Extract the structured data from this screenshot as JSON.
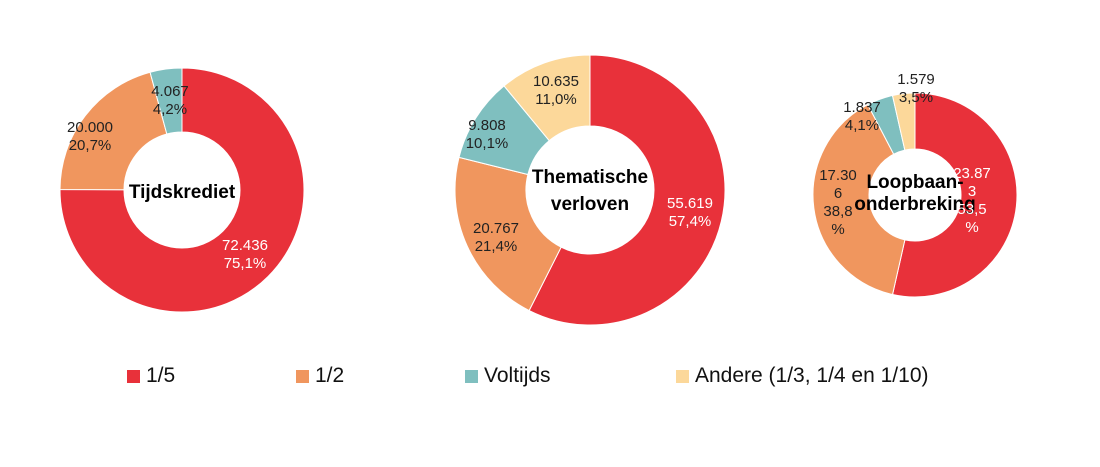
{
  "colors": {
    "one_fifth": "#E8313A",
    "half": "#F0965E",
    "fulltime": "#7FBFBF",
    "other": "#FCD89A"
  },
  "legend": [
    {
      "label": "1/5",
      "color": "#E8313A"
    },
    {
      "label": "1/2",
      "color": "#F0965E"
    },
    {
      "label": "Voltijds",
      "color": "#7FBFBF"
    },
    {
      "label": "Andere (1/3, 1/4 en 1/10)",
      "color": "#FCD89A"
    }
  ],
  "chart_data": [
    {
      "type": "pie",
      "title": "Tijdskrediet",
      "categories": [
        "1/5",
        "1/2",
        "Voltijds",
        "Andere (1/3, 1/4 en 1/10)"
      ],
      "values": [
        72436,
        20000,
        4067,
        0
      ],
      "value_labels": [
        "72.436",
        "20.000",
        "4.067",
        ""
      ],
      "percent_labels": [
        "75,1%",
        "20,7%",
        "4,2%",
        ""
      ]
    },
    {
      "type": "pie",
      "title": "Thematische verloven",
      "categories": [
        "1/5",
        "1/2",
        "Voltijds",
        "Andere (1/3, 1/4 en 1/10)"
      ],
      "values": [
        55619,
        20767,
        9808,
        10635
      ],
      "value_labels": [
        "55.619",
        "20.767",
        "9.808",
        "10.635"
      ],
      "percent_labels": [
        "57,4%",
        "21,4%",
        "10,1%",
        "11,0%"
      ]
    },
    {
      "type": "pie",
      "title": "Loopbaan-onderbreking",
      "categories": [
        "1/5",
        "1/2",
        "Voltijds",
        "Andere (1/3, 1/4 en 1/10)"
      ],
      "values": [
        23873,
        17306,
        1837,
        1579
      ],
      "value_labels": [
        "23.873",
        "17.306",
        "1.837",
        "1.579"
      ],
      "percent_labels": [
        "53,5%",
        "38,8%",
        "4,1%",
        "3,5%"
      ]
    }
  ]
}
